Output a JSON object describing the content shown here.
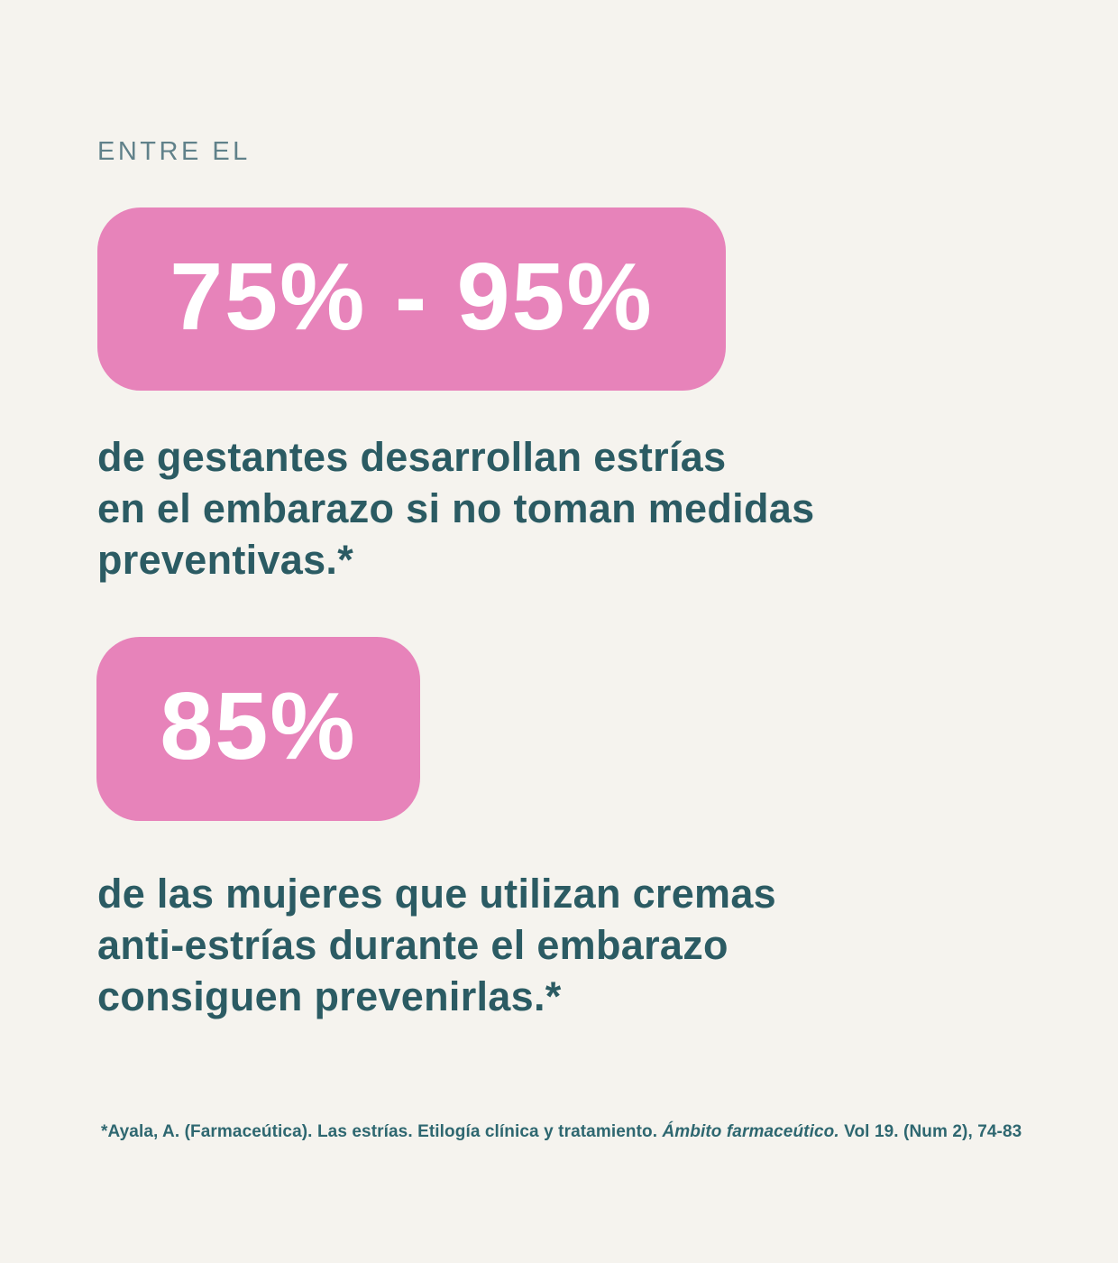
{
  "page": {
    "background_color": "#f5f3ee",
    "accent_pink": "#e783ba",
    "text_teal": "#2b5b63",
    "kicker_color": "#60818a",
    "footnote_color": "#2e6770"
  },
  "header": {
    "kicker": "ENTRE EL"
  },
  "stats": [
    {
      "value": "75% - 95%",
      "description": "de gestantes desarrollan estrías\nen el embarazo si no toman medidas\npreventivas.*"
    },
    {
      "value": "85%",
      "description": "de las mujeres que utilizan cremas\nanti-estrías durante el embarazo\nconsiguen prevenirlas.*"
    }
  ],
  "footnote": {
    "citation_prefix": "*Ayala, A. (Farmaceútica). Las estrías. Etilogía clínica y tratamiento. ",
    "journal_title": "Ámbito farmaceútico.",
    "citation_suffix": " Vol 19. (Num 2), 74-83"
  }
}
